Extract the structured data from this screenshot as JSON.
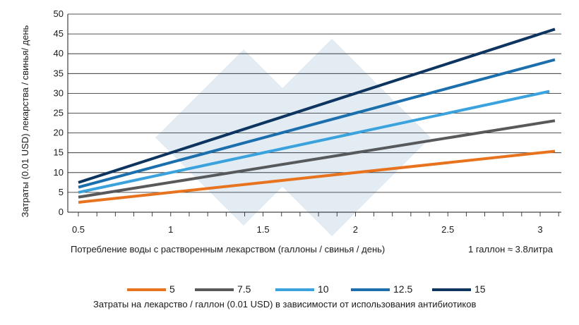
{
  "chart_data": {
    "type": "line",
    "ylabel": "Затраты (0.01 USD) лекарства / свинья/ день",
    "xlabel": "Потребление воды с растворенным лекарством (галлоны / свинья / день)",
    "note": "1 галлон ≈ 3.8литра",
    "legend_title": "Затраты на лекарство / галлон (0.01 USD) в зависимости от использования антибиотиков",
    "legend_position": "bottom",
    "grid": true,
    "xlim": [
      0.5,
      3.1
    ],
    "ylim": [
      0,
      50
    ],
    "x_ticks": [
      "0.5",
      "1",
      "1.5",
      "2",
      "2.5",
      "3"
    ],
    "x_tick_values": [
      0.5,
      1,
      1.5,
      2,
      2.5,
      3
    ],
    "y_ticks": [
      "0",
      "5",
      "10",
      "15",
      "20",
      "25",
      "30",
      "35",
      "40",
      "45",
      "50"
    ],
    "y_tick_values": [
      0,
      5,
      10,
      15,
      20,
      25,
      30,
      35,
      40,
      45,
      50
    ],
    "series": [
      {
        "name": "5",
        "color": "#e8731f",
        "x": [
          0.5,
          3.08
        ],
        "y": [
          2.5,
          15.4
        ]
      },
      {
        "name": "7.5",
        "color": "#58595b",
        "x": [
          0.5,
          3.08
        ],
        "y": [
          3.8,
          23.1
        ]
      },
      {
        "name": "10",
        "color": "#3aa2dc",
        "x": [
          0.5,
          3.05
        ],
        "y": [
          5.0,
          30.5
        ]
      },
      {
        "name": "12.5",
        "color": "#1b6fad",
        "x": [
          0.5,
          3.08
        ],
        "y": [
          6.3,
          38.5
        ]
      },
      {
        "name": "15",
        "color": "#0d3560",
        "x": [
          0.5,
          3.08
        ],
        "y": [
          7.5,
          46.2
        ]
      }
    ]
  }
}
